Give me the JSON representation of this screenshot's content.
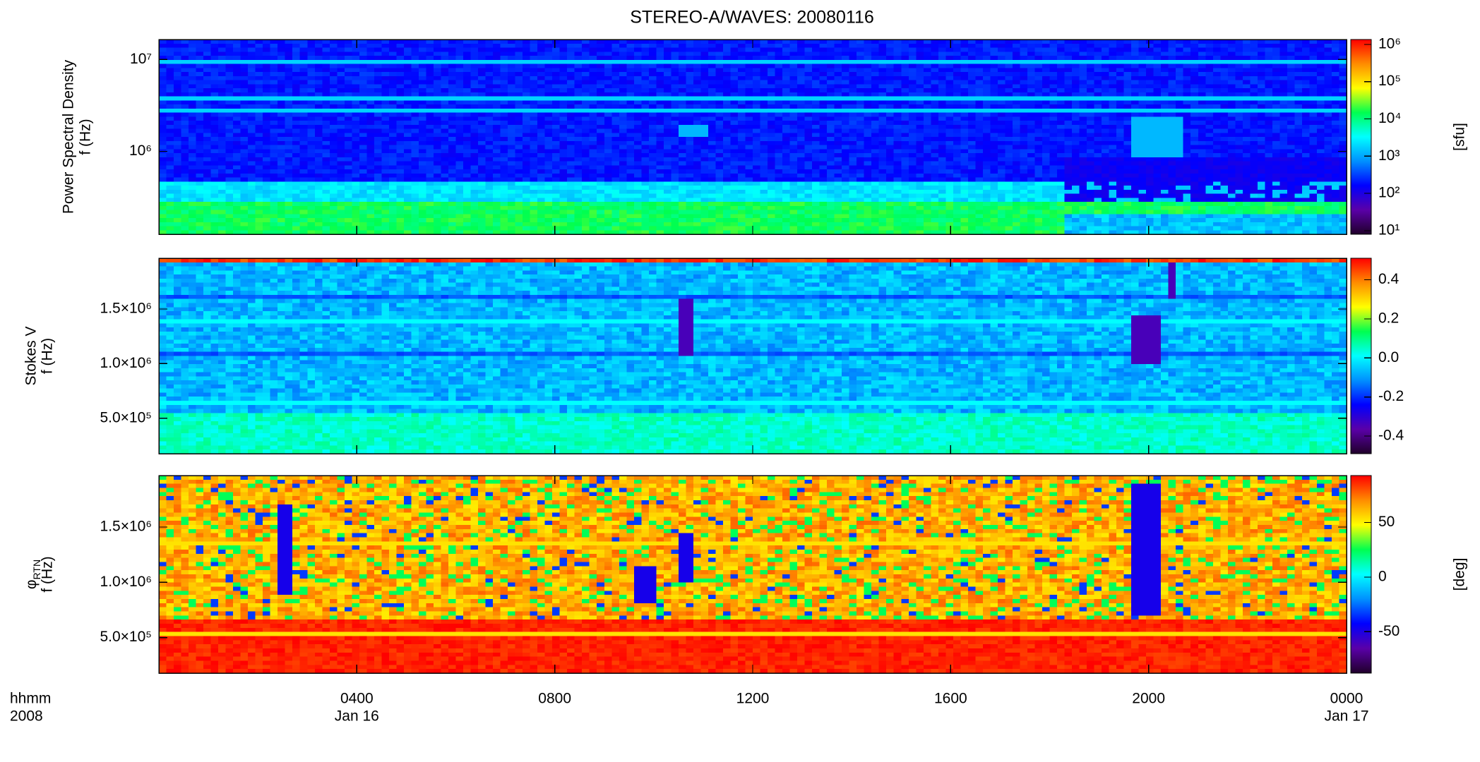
{
  "chart_data": [
    {
      "type": "heatmap",
      "title": "STEREO-A/WAVES: 20080116",
      "ylabel": [
        "Power Spectral Density",
        "f (Hz)"
      ],
      "yscale": "log",
      "ylim": [
        125000,
        16500000
      ],
      "yticks": [
        {
          "value": 1000000,
          "label": "10⁶"
        },
        {
          "value": 10000000,
          "label": "10⁷"
        }
      ],
      "xlim": [
        0,
        24
      ],
      "colormap": [
        "#20002a",
        "#5a00a8",
        "#0000ff",
        "#0090ff",
        "#00ffff",
        "#00ff50",
        "#ffff00",
        "#ff8c00",
        "#ff0000"
      ],
      "colorbar": {
        "scale": "log",
        "lim": [
          8,
          1350000
        ],
        "label": "[sfu]",
        "ticks": [
          {
            "value": 10,
            "label": "10¹"
          },
          {
            "value": 100,
            "label": "10²"
          },
          {
            "value": 1000,
            "label": "10³"
          },
          {
            "value": 10000,
            "label": "10⁴"
          },
          {
            "value": 100000,
            "label": "10⁵"
          },
          {
            "value": 1000000,
            "label": "10⁶"
          }
        ]
      }
    },
    {
      "type": "heatmap",
      "ylabel": [
        "Stokes V",
        "f (Hz)"
      ],
      "yscale": "linear",
      "ylim": [
        175000,
        1965000
      ],
      "yticks": [
        {
          "value": 500000,
          "label": "5.0×10⁵"
        },
        {
          "value": 1000000,
          "label": "1.0×10⁶"
        },
        {
          "value": 1500000,
          "label": "1.5×10⁶"
        }
      ],
      "xlim": [
        0,
        24
      ],
      "colormap": [
        "#20002a",
        "#5a00a8",
        "#0000ff",
        "#0090ff",
        "#00ffff",
        "#00ff50",
        "#ffff00",
        "#ff8c00",
        "#ff0000"
      ],
      "colorbar": {
        "scale": "linear",
        "lim": [
          -0.49,
          0.51
        ],
        "ticks": [
          {
            "value": -0.4,
            "label": "-0.4"
          },
          {
            "value": -0.2,
            "label": "-0.2"
          },
          {
            "value": 0,
            "label": "0.0"
          },
          {
            "value": 0.2,
            "label": "0.2"
          },
          {
            "value": 0.4,
            "label": "0.4"
          }
        ]
      }
    },
    {
      "type": "heatmap",
      "ylabel": [
        "φ",
        "RTN",
        "f (Hz)"
      ],
      "yscale": "linear",
      "ylim": [
        179000,
        1965000
      ],
      "yticks": [
        {
          "value": 500000,
          "label": "5.0×10⁵"
        },
        {
          "value": 1000000,
          "label": "1.0×10⁶"
        },
        {
          "value": 1500000,
          "label": "1.5×10⁶"
        }
      ],
      "xlim": [
        0,
        24
      ],
      "xticks": [
        {
          "value": 4,
          "label": "0400"
        },
        {
          "value": 8,
          "label": "0800"
        },
        {
          "value": 12,
          "label": "1200"
        },
        {
          "value": 16,
          "label": "1600"
        },
        {
          "value": 20,
          "label": "2000"
        },
        {
          "value": 24,
          "label": "0000"
        }
      ],
      "date_labels": [
        {
          "value": 4,
          "label": "Jan 16"
        },
        {
          "value": 24,
          "label": "Jan 17"
        }
      ],
      "xlabel": [
        "hhmm",
        "2008"
      ],
      "colormap": [
        "#20002a",
        "#5a00a8",
        "#0000ff",
        "#0090ff",
        "#00ffff",
        "#00ff50",
        "#ffff00",
        "#ff8c00",
        "#ff0000"
      ],
      "colorbar": {
        "scale": "linear",
        "lim": [
          -88,
          93
        ],
        "label": "[deg]",
        "ticks": [
          -50,
          0,
          50
        ]
      }
    }
  ]
}
